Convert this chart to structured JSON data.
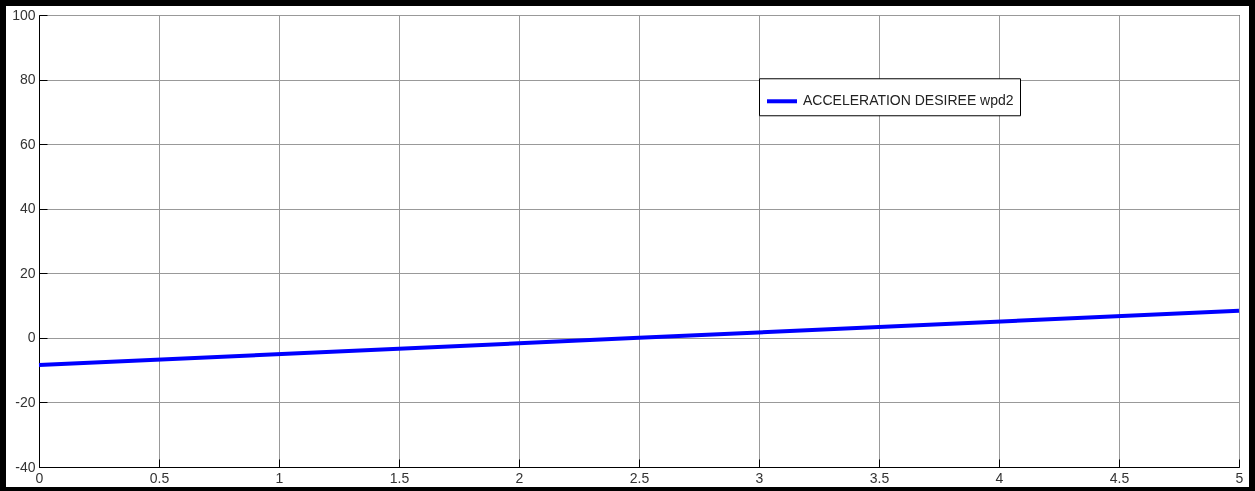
{
  "chart_data": {
    "type": "line",
    "x": [
      0,
      2.5,
      5
    ],
    "series": [
      {
        "name": "ACCELERATION DESIREE wpd2",
        "color": "#0000ff",
        "values": [
          -8.4,
          0,
          8.4
        ]
      }
    ],
    "xlim": [
      0,
      5
    ],
    "xticks": [
      0,
      0.5,
      1,
      1.5,
      2,
      2.5,
      3,
      3.5,
      4,
      4.5,
      5
    ],
    "ylim": [
      -40,
      100
    ],
    "yticks": [
      -40,
      -20,
      0,
      20,
      40,
      60,
      80,
      100
    ],
    "grid": true,
    "legend": "top right",
    "line_style": "solid",
    "marker": "none"
  }
}
